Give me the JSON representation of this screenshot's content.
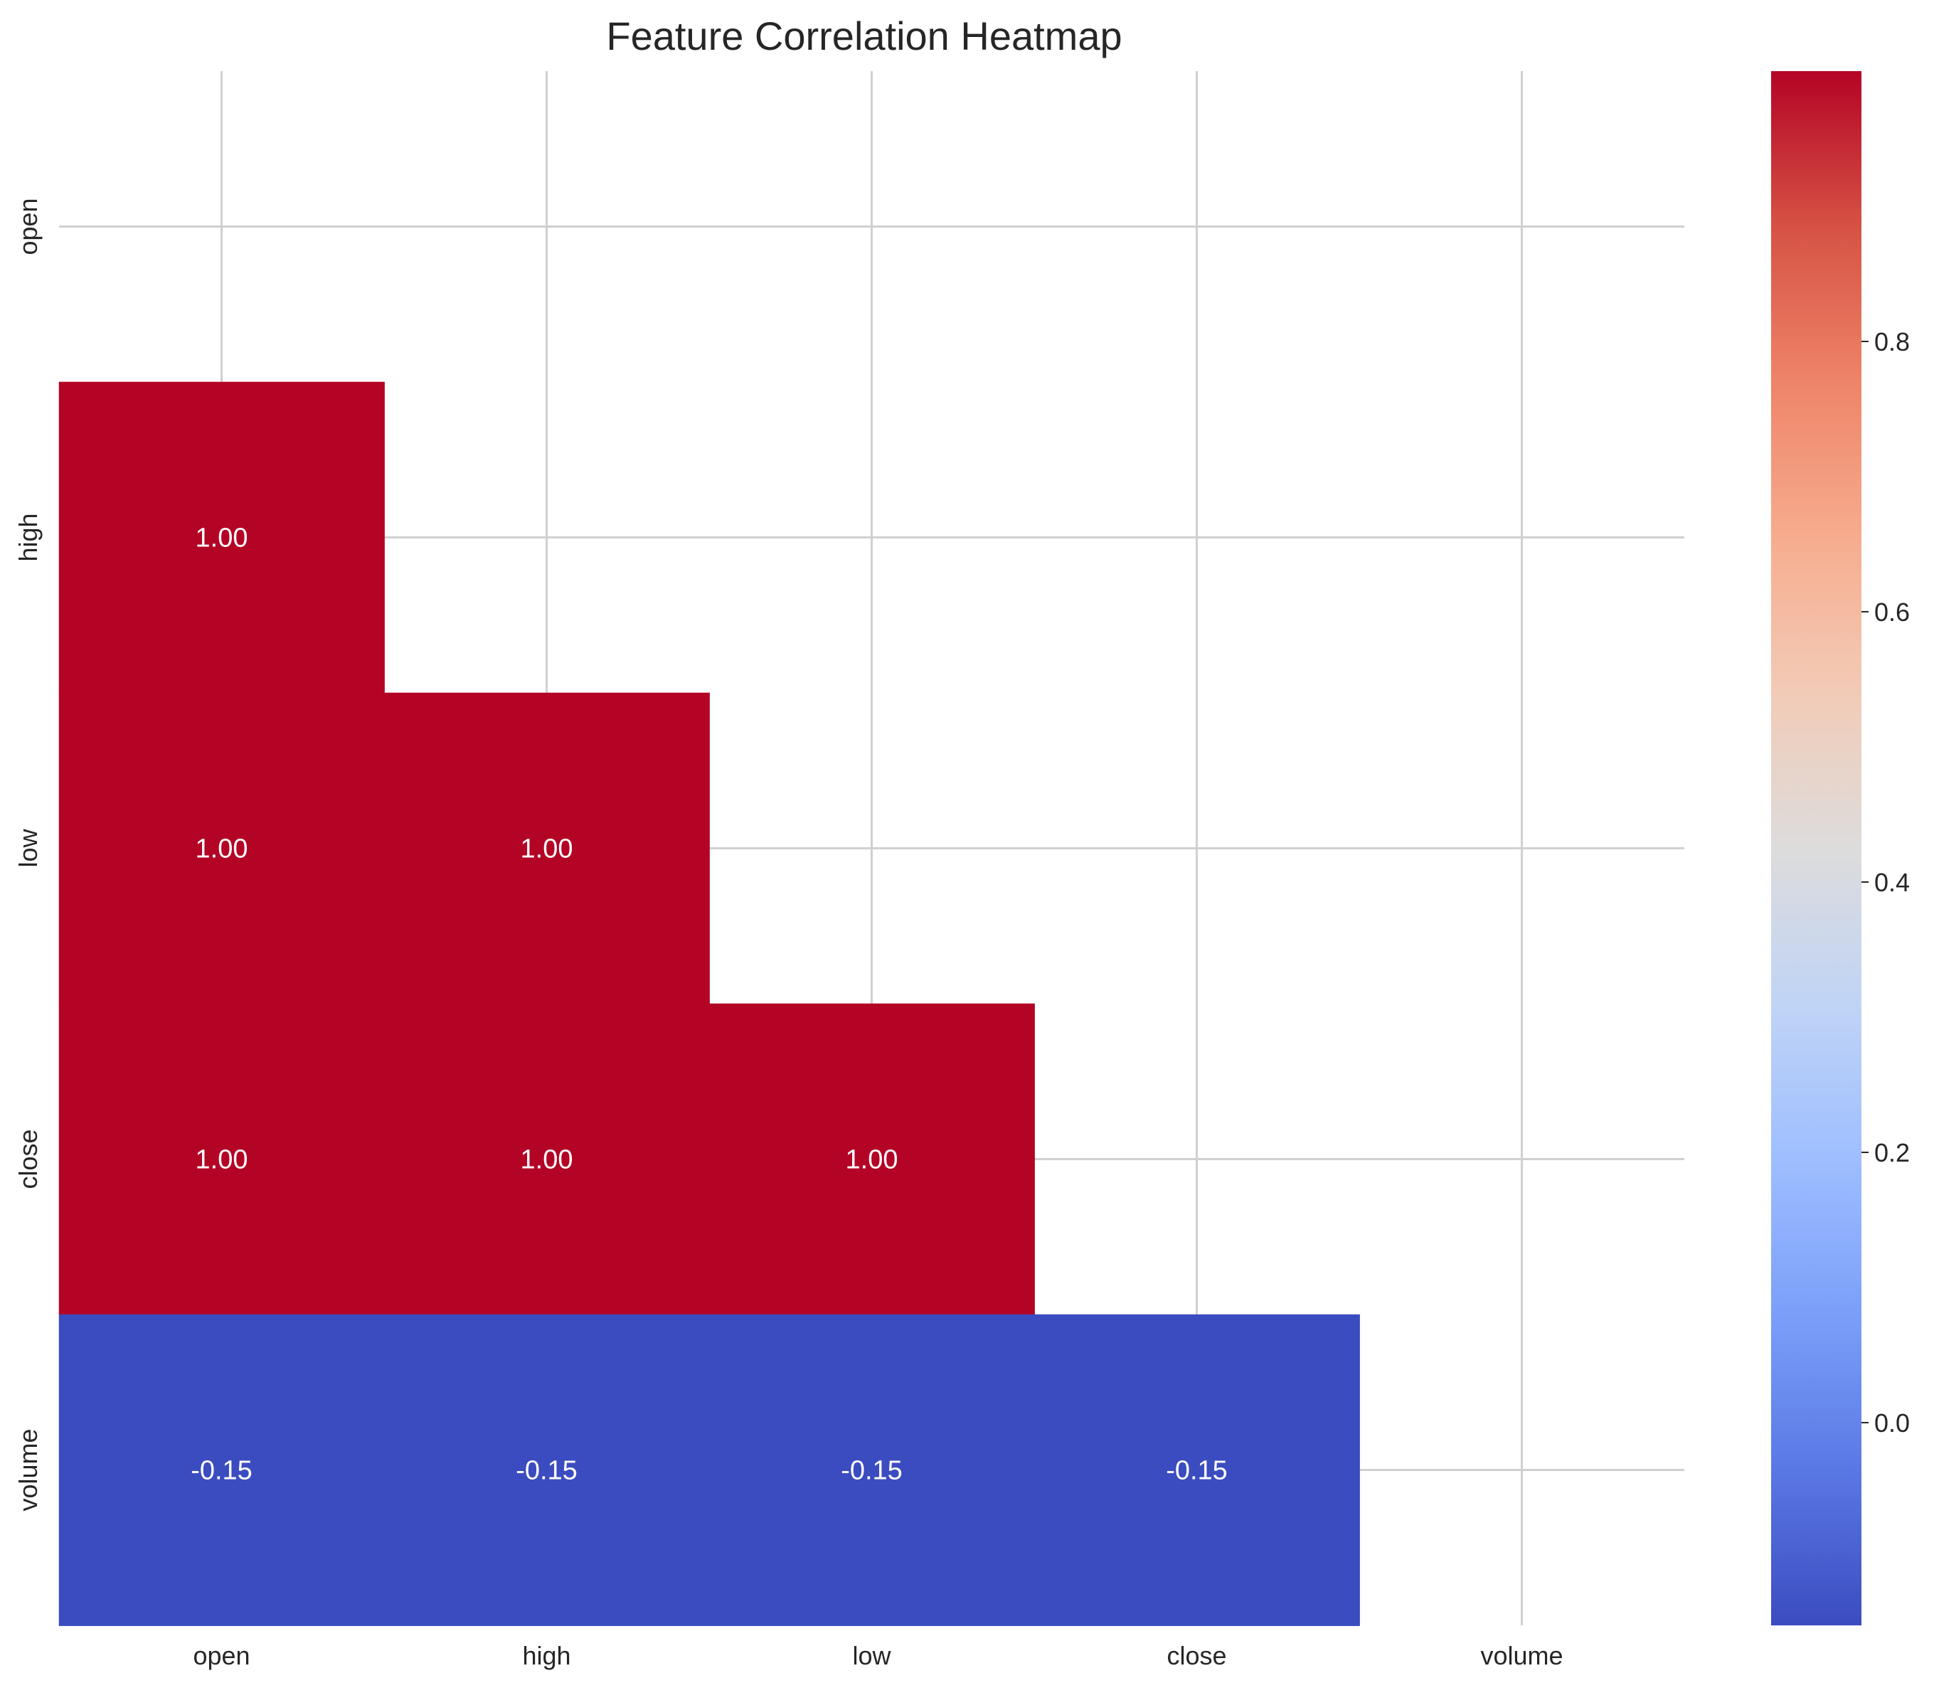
{
  "chart_data": {
    "type": "heatmap",
    "title": "Feature Correlation Heatmap",
    "xlabel": "",
    "ylabel": "",
    "x_categories": [
      "open",
      "high",
      "low",
      "close",
      "volume"
    ],
    "y_categories": [
      "open",
      "high",
      "low",
      "close",
      "volume"
    ],
    "mask": "upper-triangle-including-diagonal",
    "cells": [
      {
        "row": "high",
        "col": "open",
        "value": 1.0,
        "label": "1.00"
      },
      {
        "row": "low",
        "col": "open",
        "value": 1.0,
        "label": "1.00"
      },
      {
        "row": "low",
        "col": "high",
        "value": 1.0,
        "label": "1.00"
      },
      {
        "row": "close",
        "col": "open",
        "value": 1.0,
        "label": "1.00"
      },
      {
        "row": "close",
        "col": "high",
        "value": 1.0,
        "label": "1.00"
      },
      {
        "row": "close",
        "col": "low",
        "value": 1.0,
        "label": "1.00"
      },
      {
        "row": "volume",
        "col": "open",
        "value": -0.15,
        "label": "-0.15"
      },
      {
        "row": "volume",
        "col": "high",
        "value": -0.15,
        "label": "-0.15"
      },
      {
        "row": "volume",
        "col": "low",
        "value": -0.15,
        "label": "-0.15"
      },
      {
        "row": "volume",
        "col": "close",
        "value": -0.15,
        "label": "-0.15"
      }
    ],
    "colormap": "coolwarm",
    "colorbar": {
      "range": [
        -0.15,
        1.0
      ],
      "ticks": [
        0.0,
        0.2,
        0.4,
        0.6,
        0.8
      ],
      "tick_labels": [
        "0.0",
        "0.2",
        "0.4",
        "0.6",
        "0.8"
      ],
      "stops": [
        "#3b4cc0",
        "#5a78e4",
        "#7b9ff9",
        "#9ebeff",
        "#c0d4f5",
        "#dddcdc",
        "#f2cbb7",
        "#f7ac8e",
        "#ee8468",
        "#d65244",
        "#b40426"
      ]
    },
    "colors": {
      "high_correlation": "#b40426",
      "low_correlation": "#3b4cc0"
    },
    "grid": true
  }
}
